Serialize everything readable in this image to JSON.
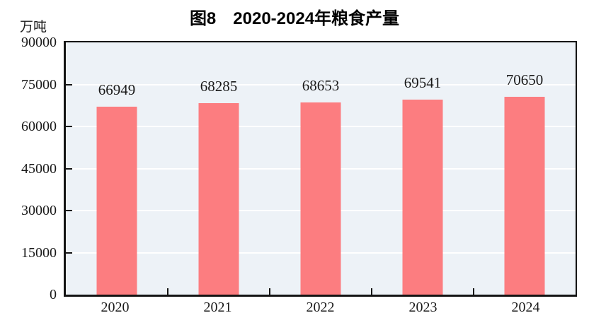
{
  "header": {
    "title": "图8　2020-2024年粮食产量"
  },
  "y_axis": {
    "unit": "万吨"
  },
  "chart_data": {
    "type": "bar",
    "title": "图8 2020-2024年粮食产量",
    "categories": [
      "2020",
      "2021",
      "2022",
      "2023",
      "2024"
    ],
    "values": [
      66949,
      68285,
      68653,
      69541,
      70650
    ],
    "xlabel": "",
    "ylabel": "万吨",
    "ylim": [
      0,
      90000
    ],
    "yticks": [
      0,
      15000,
      30000,
      45000,
      60000,
      75000,
      90000
    ],
    "grid": true,
    "legend_position": "none",
    "bar_labels_shown": true,
    "colors": {
      "bar": "#fc7d80",
      "plot_background": "#edf2f7",
      "gridline": "#ffffff",
      "axis": "#141414",
      "text": "#1a1a1a"
    }
  }
}
